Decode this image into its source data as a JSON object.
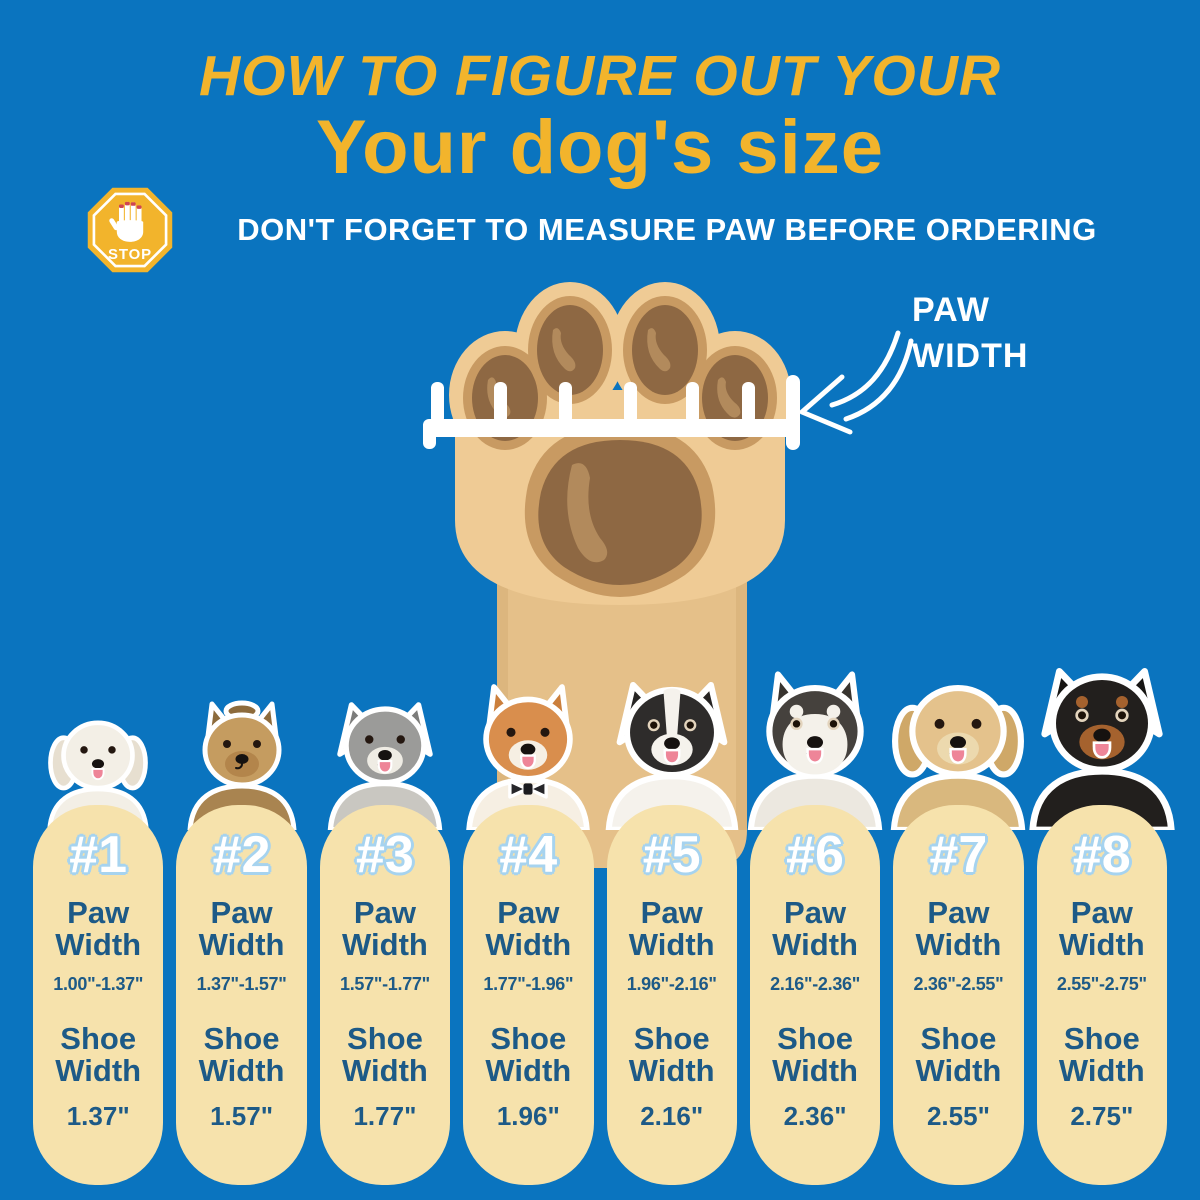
{
  "header": {
    "title_line1": "HOW TO FIGURE OUT YOUR",
    "title_line2": "Your dog's size",
    "stop_label": "STOP",
    "warning": "DON'T FORGET TO MEASURE PAW BEFORE ORDERING"
  },
  "paw_diagram": {
    "label_line1": "PAW",
    "label_line2": "WIDTH"
  },
  "column_labels": {
    "paw_width": "Paw Width",
    "shoe_width": "Shoe Width"
  },
  "colors": {
    "background": "#0a74bf",
    "accent_yellow": "#f2b42c",
    "column_cream": "#f6e2ac",
    "text_dark_blue": "#1d5a87",
    "number_outline_blue": "#a6d3ef",
    "paw_tan": "#efcb95",
    "leg_tan": "#e5c089",
    "pad_ring_tan": "#c89a62",
    "pad_brown": "#8e6843",
    "pad_highlight": "#b28a5c",
    "white": "#ffffff"
  },
  "sizes": [
    {
      "number": "#1",
      "paw_width": "1.00\"-1.37\"",
      "shoe_width": "1.37\"",
      "dog": {
        "icon": "bichon-frise",
        "ears": "floppy",
        "head": "#f3efe6",
        "ear": "#e7dfd0",
        "muzzle": "#f3efe6",
        "chest": "#f3efe6",
        "tongue": true,
        "dark": false
      }
    },
    {
      "number": "#2",
      "paw_width": "1.37\"-1.57\"",
      "shoe_width": "1.57\"",
      "dog": {
        "icon": "yorkshire-terrier",
        "ears": "point",
        "head": "#c59c60",
        "ear": "#8d6b3c",
        "muzzle": "#b3854b",
        "chest": "#a98450",
        "topknot": true,
        "dark": false
      }
    },
    {
      "number": "#3",
      "paw_width": "1.57\"-1.77\"",
      "shoe_width": "1.77\"",
      "dog": {
        "icon": "bearded-collie",
        "ears": "fold",
        "head": "#9b9b99",
        "ear": "#7c7c7a",
        "muzzle": "#efece4",
        "chest": "#c9c7c1",
        "tongue": true,
        "dark": false
      }
    },
    {
      "number": "#4",
      "paw_width": "1.77\"-1.96\"",
      "shoe_width": "1.96\"",
      "dog": {
        "icon": "shiba-inu",
        "ears": "point",
        "head": "#d98e4d",
        "ear": "#cb7f3c",
        "muzzle": "#f6efe3",
        "chest": "#f6efe3",
        "bowtie": true,
        "tongue": true,
        "dark": false
      }
    },
    {
      "number": "#5",
      "paw_width": "1.96\"-2.16\"",
      "shoe_width": "2.16\"",
      "dog": {
        "icon": "border-collie",
        "ears": "fold",
        "head": "#2e2c2b",
        "ear": "#262423",
        "muzzle": "#f5f2ec",
        "chest": "#f5f2ec",
        "blaze": true,
        "tongue": true,
        "dark": true
      }
    },
    {
      "number": "#6",
      "paw_width": "2.16\"-2.36\"",
      "shoe_width": "2.36\"",
      "dog": {
        "icon": "siberian-husky",
        "ears": "point",
        "head": "#45413d",
        "ear": "#38342f",
        "muzzle": "#f4f1ea",
        "chest": "#ece8e0",
        "mask": true,
        "tongue": true,
        "dark": true
      }
    },
    {
      "number": "#7",
      "paw_width": "2.36\"-2.55\"",
      "shoe_width": "2.55\"",
      "dog": {
        "icon": "golden-retriever",
        "ears": "floppy",
        "head": "#e4c28c",
        "ear": "#cfa868",
        "muzzle": "#ecd9ae",
        "chest": "#d9b87e",
        "tongue": true,
        "dark": false
      }
    },
    {
      "number": "#8",
      "paw_width": "2.55\"-2.75\"",
      "shoe_width": "2.75\"",
      "dog": {
        "icon": "rottweiler",
        "ears": "fold",
        "head": "#221f1d",
        "ear": "#171513",
        "muzzle": "#a5622e",
        "chest": "#221f1d",
        "brows": "#a5622e",
        "tongue": true,
        "dark": true
      }
    }
  ]
}
